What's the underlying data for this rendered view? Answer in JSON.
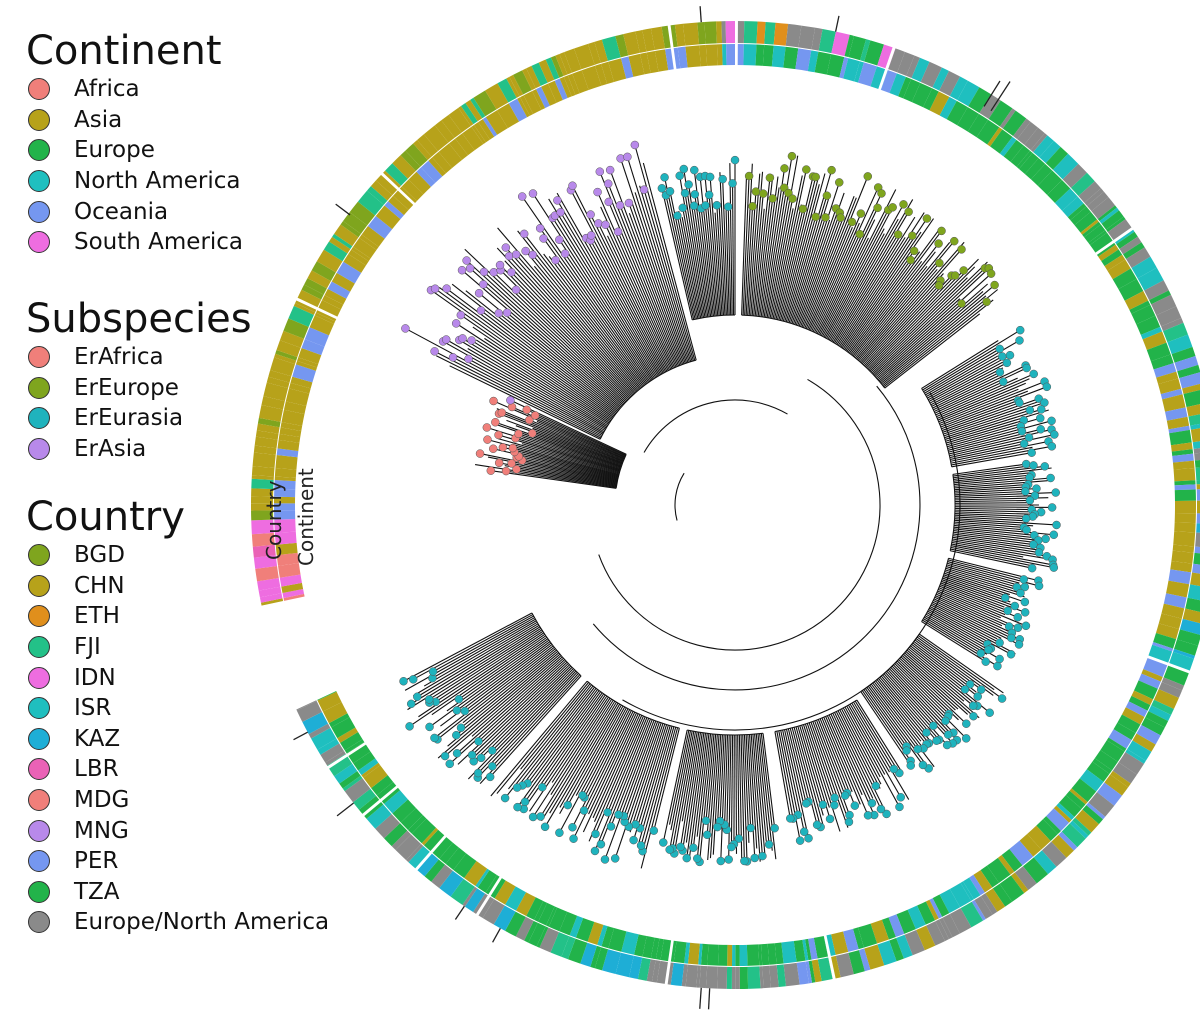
{
  "legends": {
    "continent": {
      "title": "Continent",
      "items": [
        {
          "label": "Africa",
          "color": "#f07f7a"
        },
        {
          "label": "Asia",
          "color": "#b7a21a"
        },
        {
          "label": "Europe",
          "color": "#22b34a"
        },
        {
          "label": "North America",
          "color": "#1fbfbf"
        },
        {
          "label": "Oceania",
          "color": "#7597f0"
        },
        {
          "label": "South America",
          "color": "#ee6de0"
        }
      ]
    },
    "subspecies": {
      "title": "Subspecies",
      "items": [
        {
          "label": "ErAfrica",
          "color": "#f07f7a"
        },
        {
          "label": "ErEurope",
          "color": "#7fa51e"
        },
        {
          "label": "ErEurasia",
          "color": "#1fb3bd"
        },
        {
          "label": "ErAsia",
          "color": "#b889ea"
        }
      ]
    },
    "country": {
      "title": "Country",
      "items": [
        {
          "label": "BGD",
          "color": "#7fa51e"
        },
        {
          "label": "CHN",
          "color": "#b7a21a"
        },
        {
          "label": "ETH",
          "color": "#e08f1c"
        },
        {
          "label": "FJI",
          "color": "#23c188"
        },
        {
          "label": "IDN",
          "color": "#ee6de0"
        },
        {
          "label": "ISR",
          "color": "#1fbfbf"
        },
        {
          "label": "KAZ",
          "color": "#1eaed6"
        },
        {
          "label": "LBR",
          "color": "#ea62b6"
        },
        {
          "label": "MDG",
          "color": "#f07f7a"
        },
        {
          "label": "MNG",
          "color": "#b889ea"
        },
        {
          "label": "PER",
          "color": "#7597f0"
        },
        {
          "label": "TZA",
          "color": "#22b34a"
        },
        {
          "label": "Europe/North America",
          "color": "#8a8a8a"
        }
      ]
    }
  },
  "ring_labels": {
    "country": "Country",
    "continent": "Continent"
  }
}
